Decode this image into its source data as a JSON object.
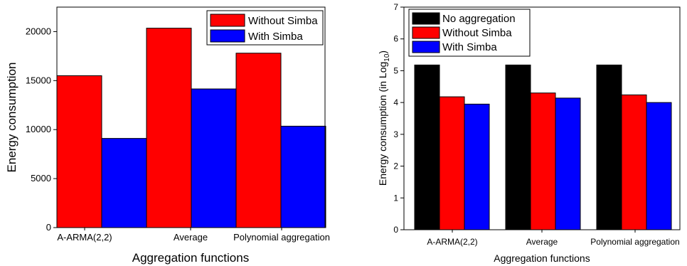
{
  "chart_data": [
    {
      "type": "bar",
      "categories": [
        "A-ARMA(2,2)",
        "Average",
        "Polynomial aggregation"
      ],
      "series": [
        {
          "name": "Without Simba",
          "values": [
            15500,
            20350,
            17800
          ],
          "color": "#ff0000"
        },
        {
          "name": "With Simba",
          "values": [
            9100,
            14150,
            10350
          ],
          "color": "#0000ff"
        }
      ],
      "xlabel": "Aggregation functions",
      "ylabel": "Energy consumption",
      "ylim": [
        0,
        22500
      ],
      "yticks": [
        0,
        5000,
        10000,
        15000,
        20000
      ],
      "grid": false,
      "legend_placement": "top-right"
    },
    {
      "type": "bar",
      "categories": [
        "A-ARMA(2,2)",
        "Average",
        "Polynomial aggregation"
      ],
      "series": [
        {
          "name": "No aggregation",
          "values": [
            5.18,
            5.18,
            5.18
          ],
          "color": "#000000"
        },
        {
          "name": "Without Simba",
          "values": [
            4.18,
            4.3,
            4.24
          ],
          "color": "#ff0000"
        },
        {
          "name": "With Simba",
          "values": [
            3.95,
            4.14,
            4.0
          ],
          "color": "#0000ff"
        }
      ],
      "xlabel": "Aggregation functions",
      "ylabel": "Energy consumption (in Log",
      "ylabel_subscript": "10",
      "ylabel_suffix": ")",
      "ylim": [
        0,
        7
      ],
      "yticks": [
        0,
        1,
        2,
        3,
        4,
        5,
        6,
        7
      ],
      "grid": false,
      "legend_placement": "top-left"
    }
  ]
}
